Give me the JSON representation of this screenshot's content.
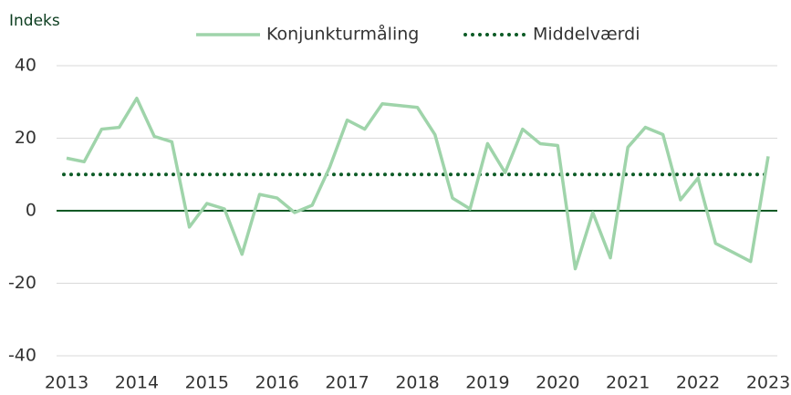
{
  "chart_data": {
    "type": "line",
    "y_label": "Indeks",
    "x": [
      2013,
      2013.25,
      2013.5,
      2013.75,
      2014,
      2014.25,
      2014.5,
      2014.75,
      2015,
      2015.25,
      2015.5,
      2015.75,
      2016,
      2016.25,
      2016.5,
      2016.75,
      2017,
      2017.25,
      2017.5,
      2017.75,
      2018,
      2018.25,
      2018.5,
      2018.75,
      2019,
      2019.25,
      2019.5,
      2019.75,
      2020,
      2020.25,
      2020.5,
      2020.75,
      2021,
      2021.25,
      2021.5,
      2021.75,
      2022,
      2022.25,
      2022.5,
      2022.75,
      2023
    ],
    "series": [
      {
        "name": "Konjunkturmåling",
        "color": "#9fd4aa",
        "values": [
          14.5,
          13.5,
          22.5,
          23,
          31,
          20.5,
          19,
          -4.5,
          2,
          0.5,
          -12,
          4.5,
          3.5,
          -0.5,
          1.5,
          12,
          25,
          22.5,
          29.5,
          29,
          28.5,
          21,
          3.5,
          0.5,
          18.5,
          10.5,
          22.5,
          18.5,
          18,
          -16,
          -0.5,
          -13,
          17.5,
          23,
          21,
          3,
          9,
          -9,
          -11.5,
          -14,
          15
        ]
      }
    ],
    "reference_lines": [
      {
        "name": "Middelværdi",
        "value": 10,
        "color": "#0b5a25",
        "style": "dotted"
      }
    ],
    "zero_line_color": "#0b5a25",
    "xlim": [
      2013,
      2023
    ],
    "xticks": [
      2013,
      2014,
      2015,
      2016,
      2017,
      2018,
      2019,
      2020,
      2021,
      2022,
      2023
    ],
    "ylim": [
      -40,
      40
    ],
    "yticks": [
      -40,
      -20,
      0,
      20,
      40
    ],
    "grid": true
  }
}
